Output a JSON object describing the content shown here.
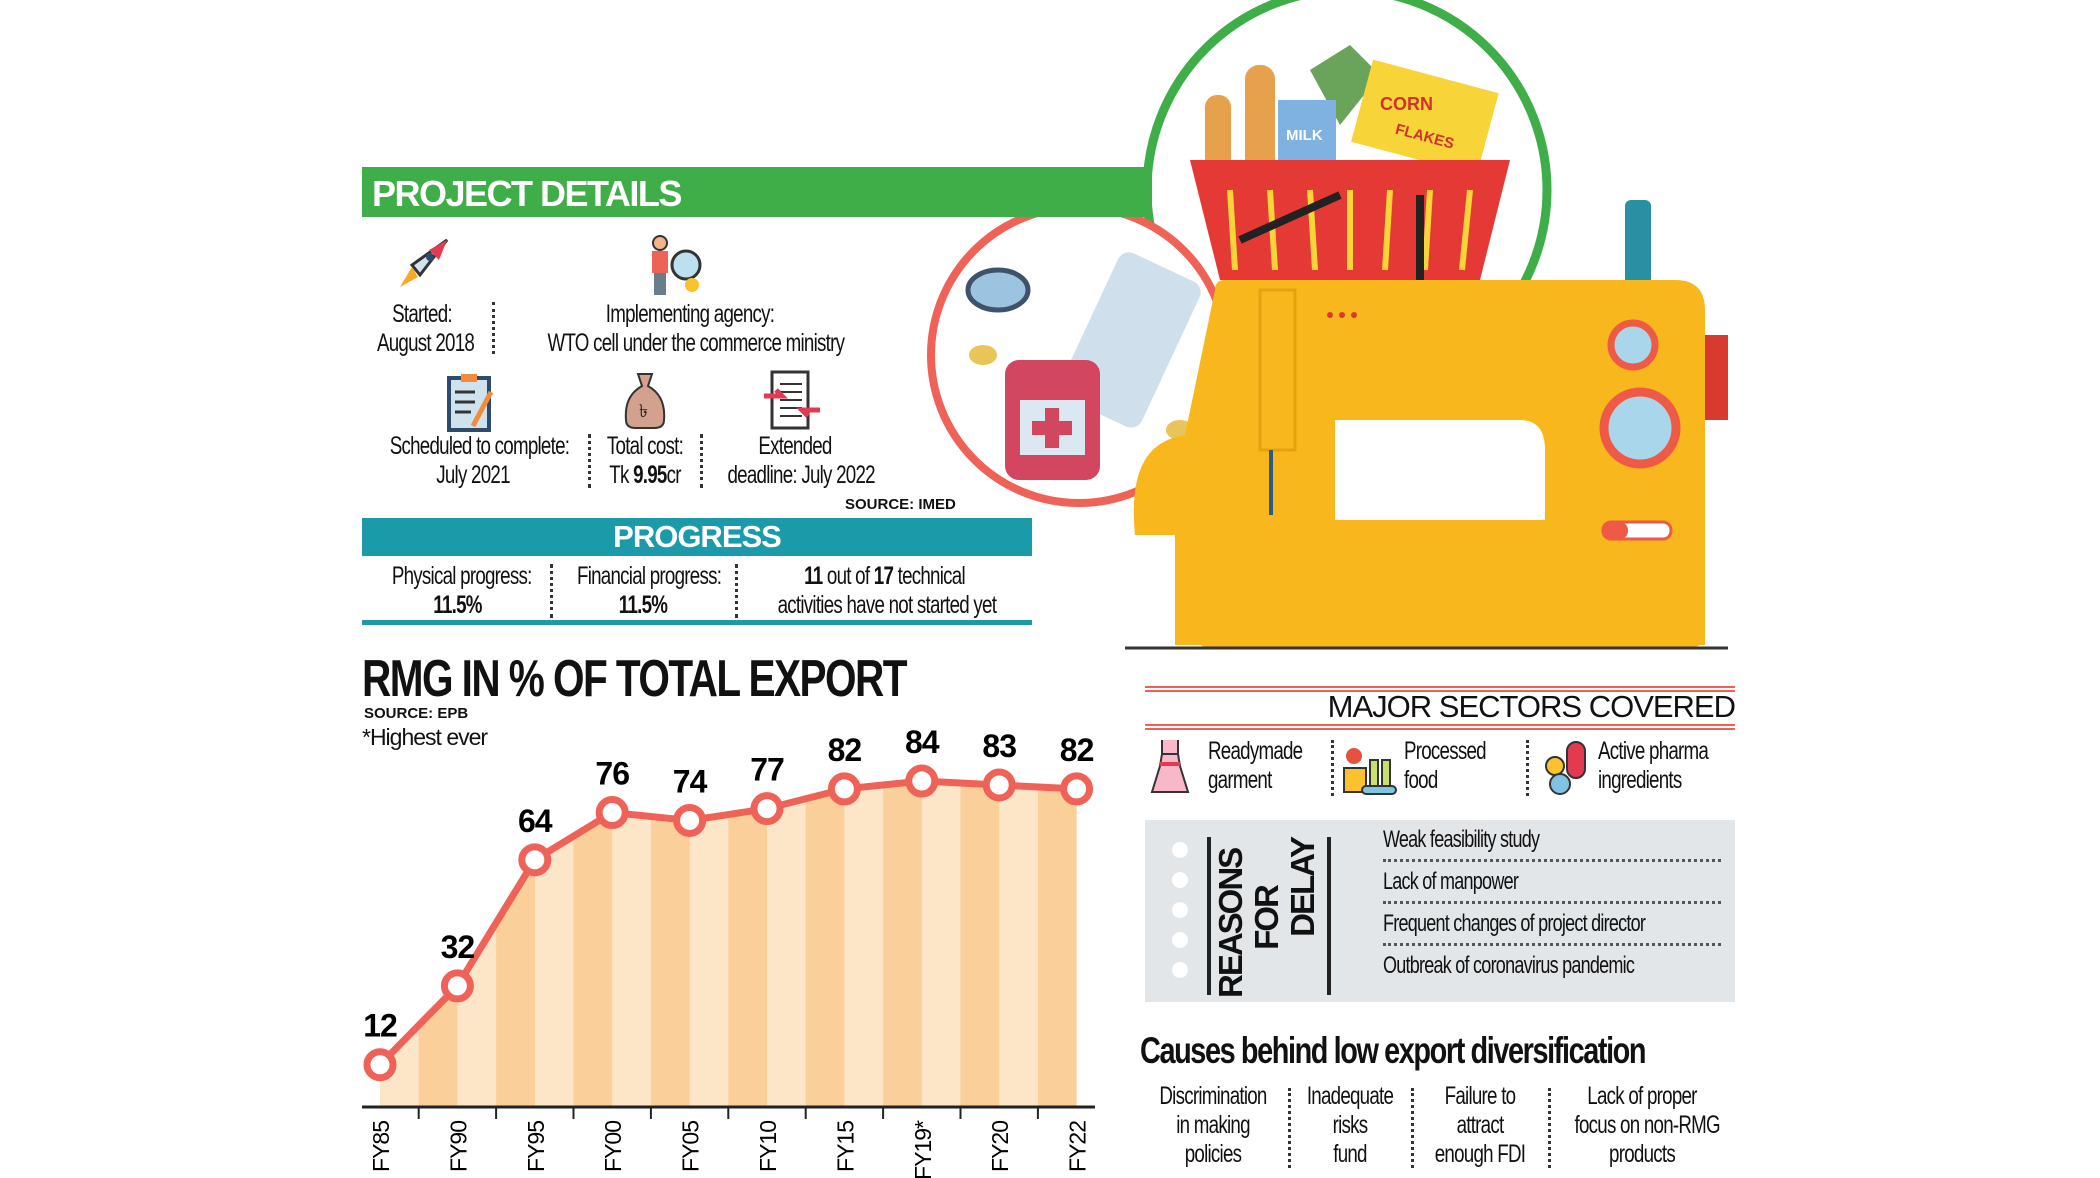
{
  "project_details": {
    "title": "PROJECT DETAILS",
    "started_label": "Started:",
    "started_value": "August 2018",
    "agency_label": "Implementing agency:",
    "agency_value": "WTO cell under the commerce ministry",
    "scheduled_label": "Scheduled to complete:",
    "scheduled_value": "July 2021",
    "cost_label": "Total cost:",
    "cost_prefix": "Tk ",
    "cost_value": "9.95",
    "cost_suffix": "cr",
    "extended_label": "Extended",
    "extended_value": "deadline: July 2022",
    "source": "SOURCE: IMED",
    "icons": [
      "rocket-icon",
      "analyst-icon",
      "checklist-icon",
      "money-bag-icon",
      "document-exchange-icon"
    ]
  },
  "progress": {
    "title": "PROGRESS",
    "physical_label": "Physical progress:",
    "physical_value": "11.5%",
    "financial_label": "Financial progress:",
    "financial_value": "11.5%",
    "activities_count": "11",
    "activities_mid": " out of ",
    "activities_total": "17",
    "activities_suffix": " technical",
    "activities_line2": "activities have not started yet"
  },
  "chart_data": {
    "type": "area",
    "title": "RMG IN % OF TOTAL EXPORT",
    "source": "SOURCE: EPB",
    "note": "*Highest ever",
    "categories": [
      "FY85",
      "FY90",
      "FY95",
      "FY00",
      "FY05",
      "FY10",
      "FY15",
      "FY19*",
      "FY20",
      "FY22"
    ],
    "values": [
      12,
      32,
      64,
      76,
      74,
      77,
      82,
      84,
      83,
      82
    ],
    "xlabel": "",
    "ylabel": "",
    "colors": {
      "line": "#ef6258",
      "fill_light": "#fde5c8",
      "fill_dark": "#fbcf9a"
    }
  },
  "sectors": {
    "title": "MAJOR SECTORS COVERED",
    "items": [
      {
        "line1": "Readymade",
        "line2": "garment",
        "icon": "dress-icon"
      },
      {
        "line1": "Processed",
        "line2": "food",
        "icon": "food-processing-icon"
      },
      {
        "line1": "Active pharma",
        "line2": "ingredients",
        "icon": "pills-icon"
      }
    ]
  },
  "reasons": {
    "title_1": "REASONS",
    "title_2": "FOR",
    "title_3": "DELAY",
    "items": [
      "Weak feasibility study",
      "Lack of manpower",
      "Frequent changes of project director",
      "Outbreak of coronavirus pandemic"
    ]
  },
  "causes": {
    "title": "Causes behind low export diversification",
    "items": [
      [
        "Discrimination",
        "in making",
        "policies"
      ],
      [
        "Inadequate",
        "risks",
        "fund"
      ],
      [
        "Failure to",
        "attract",
        "enough FDI"
      ],
      [
        "Lack of proper",
        "focus on non-RMG",
        "products"
      ]
    ]
  },
  "illustration": {
    "basket_label_1": "CORN",
    "basket_label_2": "FLAKES",
    "milk_label": "MILK"
  }
}
